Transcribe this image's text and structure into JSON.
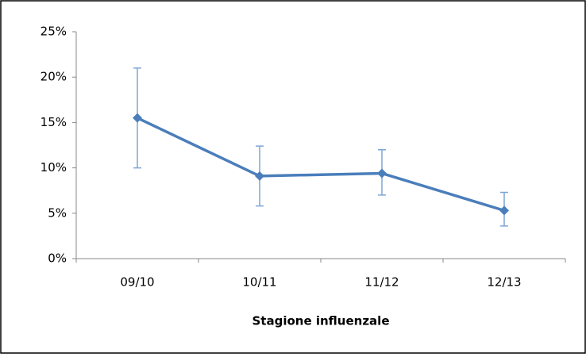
{
  "chart_data": {
    "type": "line",
    "x_label": "Stagione influenzale",
    "categories": [
      "09/10",
      "10/11",
      "11/12",
      "12/13"
    ],
    "series": [
      {
        "color": "#4a7ebb",
        "values": [
          15.5,
          9.1,
          9.4,
          5.3
        ],
        "error_lower": [
          10,
          5.8,
          7,
          3.6
        ],
        "error_upper": [
          21,
          12.4,
          12,
          7.3
        ]
      }
    ],
    "ylim": [
      0,
      25
    ],
    "yticks": [
      {
        "value": 0,
        "label": "0%"
      },
      {
        "value": 5,
        "label": "5%"
      },
      {
        "value": 10,
        "label": "10%"
      },
      {
        "value": 15,
        "label": "15%"
      },
      {
        "value": 20,
        "label": "20%"
      },
      {
        "value": 25,
        "label": "25%"
      }
    ]
  }
}
